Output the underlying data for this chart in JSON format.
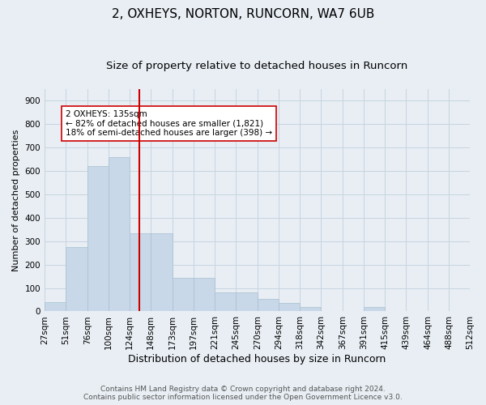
{
  "title": "2, OXHEYS, NORTON, RUNCORN, WA7 6UB",
  "subtitle": "Size of property relative to detached houses in Runcorn",
  "xlabel": "Distribution of detached houses by size in Runcorn",
  "ylabel": "Number of detached properties",
  "bar_color": "#c8d8e8",
  "bar_edge_color": "#a8bfd0",
  "vline_color": "#cc0000",
  "vline_x": 135,
  "annotation_text": "2 OXHEYS: 135sqm\n← 82% of detached houses are smaller (1,821)\n18% of semi-detached houses are larger (398) →",
  "annotation_box_color": "#ffffff",
  "annotation_box_edge": "#cc0000",
  "grid_color": "#c8d4e0",
  "background_color": "#e8eef4",
  "footer_line1": "Contains HM Land Registry data © Crown copyright and database right 2024.",
  "footer_line2": "Contains public sector information licensed under the Open Government Licence v3.0.",
  "bin_edges": [
    27,
    51,
    76,
    100,
    124,
    148,
    173,
    197,
    221,
    245,
    270,
    294,
    318,
    342,
    367,
    391,
    415,
    439,
    464,
    488,
    512
  ],
  "bar_heights": [
    40,
    275,
    620,
    660,
    335,
    335,
    145,
    145,
    80,
    80,
    55,
    35,
    20,
    0,
    0,
    20,
    0,
    0,
    0,
    0
  ],
  "ylim": [
    0,
    950
  ],
  "yticks": [
    0,
    100,
    200,
    300,
    400,
    500,
    600,
    700,
    800,
    900
  ],
  "title_fontsize": 11,
  "subtitle_fontsize": 9.5,
  "xlabel_fontsize": 9,
  "ylabel_fontsize": 8,
  "tick_fontsize": 7.5,
  "annotation_fontsize": 7.5,
  "footer_fontsize": 6.5
}
